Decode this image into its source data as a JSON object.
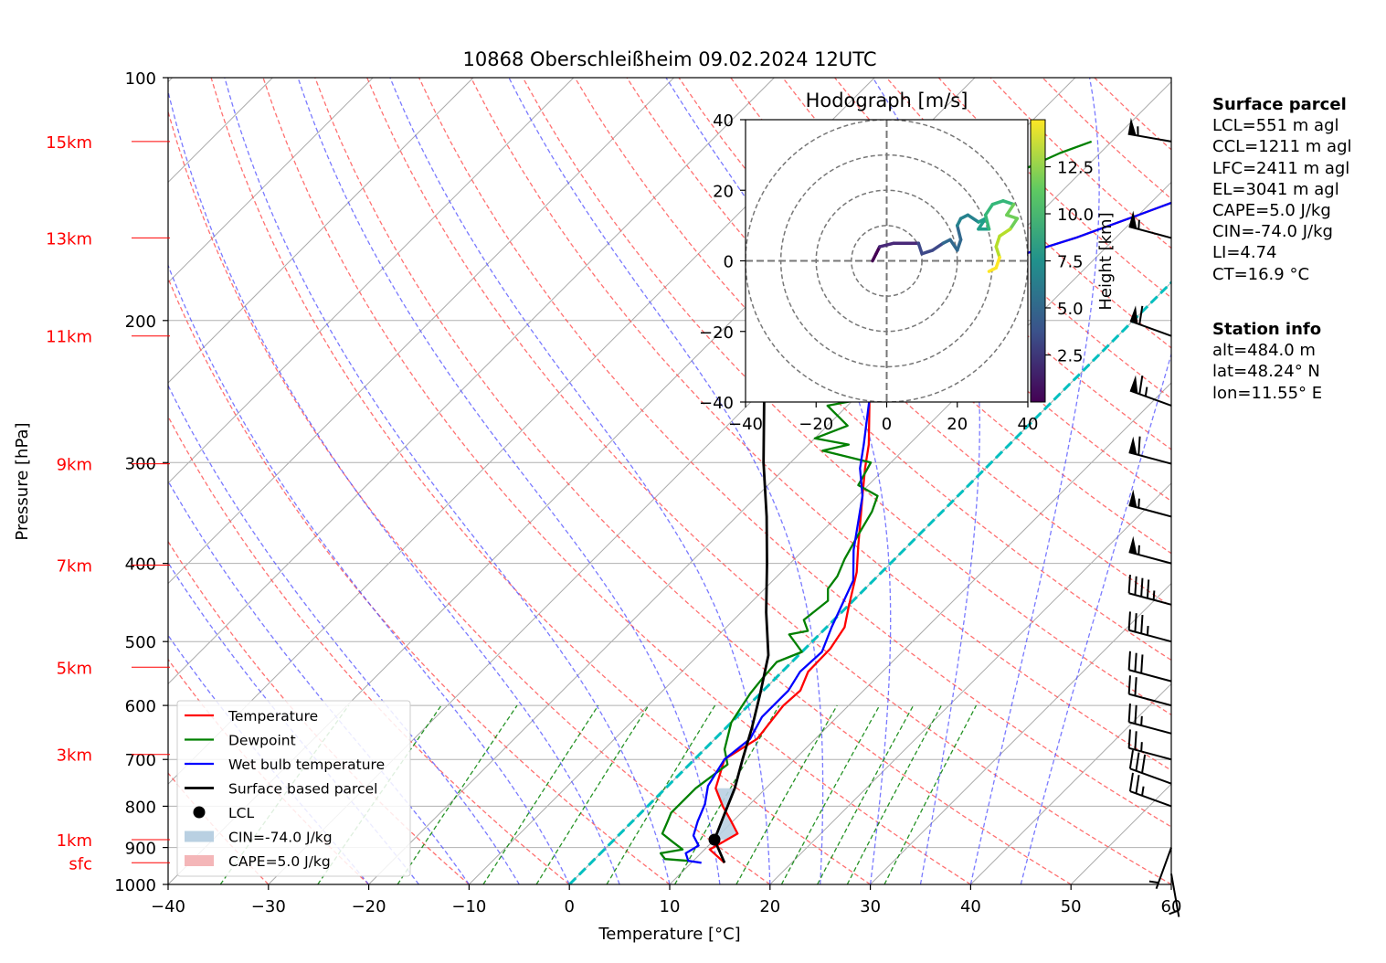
{
  "chart_data": {
    "type": "skew-t log-p",
    "title": "10868 Oberschleißheim 09.02.2024 12UTC",
    "xlabel": "Temperature [°C]",
    "ylabel": "Pressure [hPa]",
    "xlim": [
      -40,
      60
    ],
    "ylim": [
      1000,
      100
    ],
    "x_ticks": [
      "−40",
      "−30",
      "−20",
      "−10",
      "0",
      "10",
      "20",
      "30",
      "40",
      "50",
      "60"
    ],
    "y_ticks": [
      {
        "p": 100,
        "label": "100"
      },
      {
        "p": 200,
        "label": "200"
      },
      {
        "p": 300,
        "label": "300"
      },
      {
        "p": 400,
        "label": "400"
      },
      {
        "p": 500,
        "label": "500"
      },
      {
        "p": 600,
        "label": "600"
      },
      {
        "p": 700,
        "label": "700"
      },
      {
        "p": 800,
        "label": "800"
      },
      {
        "p": 900,
        "label": "900"
      },
      {
        "p": 1000,
        "label": "1000"
      }
    ],
    "height_labels": [
      {
        "p": 120,
        "label": "15km"
      },
      {
        "p": 158,
        "label": "13km"
      },
      {
        "p": 209,
        "label": "11km"
      },
      {
        "p": 301,
        "label": "9km"
      },
      {
        "p": 402,
        "label": "7km"
      },
      {
        "p": 538,
        "label": "5km"
      },
      {
        "p": 690,
        "label": "3km"
      },
      {
        "p": 880,
        "label": "1km"
      },
      {
        "p": 940,
        "label": "sfc"
      }
    ],
    "series": [
      {
        "name": "Temperature",
        "color": "#ff0000",
        "width": 2.3,
        "points": [
          [
            13.3,
            940
          ],
          [
            10.5,
            905
          ],
          [
            11.7,
            865
          ],
          [
            9.5,
            830
          ],
          [
            7.5,
            800
          ],
          [
            5,
            760
          ],
          [
            3,
            700
          ],
          [
            4.2,
            660
          ],
          [
            3.5,
            600
          ],
          [
            3.7,
            575
          ],
          [
            2.6,
            545
          ],
          [
            2.5,
            510
          ],
          [
            1.8,
            480
          ],
          [
            0.3,
            455
          ],
          [
            -2.5,
            410
          ],
          [
            -5,
            380
          ],
          [
            -9.5,
            330
          ],
          [
            -12,
            305
          ],
          [
            -14,
            285
          ],
          [
            -18.5,
            250
          ],
          [
            -21.5,
            225
          ],
          [
            -23.5,
            205
          ],
          [
            -25,
            188
          ],
          [
            -24.5,
            178
          ],
          [
            -20.5,
            172
          ],
          [
            -14,
            158
          ],
          [
            -10,
            148
          ],
          [
            -5,
            136
          ],
          [
            -3.5,
            129
          ],
          [
            0.5,
            120
          ],
          [
            0.5,
            118
          ]
        ]
      },
      {
        "name": "Dewpoint",
        "color": "#008000",
        "width": 2.3,
        "points": [
          [
            9.5,
            935
          ],
          [
            7,
            930
          ],
          [
            6,
            915
          ],
          [
            7.8,
            905
          ],
          [
            6,
            885
          ],
          [
            4.2,
            865
          ],
          [
            3.5,
            835
          ],
          [
            3,
            815
          ],
          [
            3,
            760
          ],
          [
            3.8,
            710
          ],
          [
            2,
            680
          ],
          [
            0,
            630
          ],
          [
            -1,
            580
          ],
          [
            -1.3,
            555
          ],
          [
            -1.5,
            530
          ],
          [
            0,
            515
          ],
          [
            -3,
            490
          ],
          [
            -1.5,
            485
          ],
          [
            -3,
            470
          ],
          [
            -2.5,
            445
          ],
          [
            -3.7,
            430
          ],
          [
            -4,
            415
          ],
          [
            -5,
            395
          ],
          [
            -6,
            370
          ],
          [
            -7,
            345
          ],
          [
            -8,
            330
          ],
          [
            -11,
            320
          ],
          [
            -11.5,
            310
          ],
          [
            -12,
            300
          ],
          [
            -18,
            290
          ],
          [
            -16,
            285
          ],
          [
            -20,
            280
          ],
          [
            -18,
            270
          ],
          [
            -22,
            255
          ],
          [
            -19,
            250
          ],
          [
            -20,
            235
          ],
          [
            -23,
            220
          ],
          [
            -22,
            200
          ],
          [
            -23.8,
            190
          ],
          [
            -23,
            180
          ],
          [
            -22,
            175
          ],
          [
            -28,
            160
          ],
          [
            -30,
            152
          ],
          [
            -30,
            145
          ],
          [
            -28,
            138
          ],
          [
            -26,
            130
          ],
          [
            -24,
            124
          ],
          [
            -22,
            120
          ]
        ]
      },
      {
        "name": "Wet bulb temperature",
        "color": "#0000ff",
        "width": 2.3,
        "points": [
          [
            11,
            940
          ],
          [
            9.5,
            935
          ],
          [
            8.5,
            915
          ],
          [
            9,
            895
          ],
          [
            7.5,
            870
          ],
          [
            6.5,
            835
          ],
          [
            5.5,
            795
          ],
          [
            4,
            755
          ],
          [
            3,
            700
          ],
          [
            3.5,
            660
          ],
          [
            2.5,
            620
          ],
          [
            2.5,
            575
          ],
          [
            1.8,
            545
          ],
          [
            2,
            515
          ],
          [
            0.5,
            480
          ],
          [
            -0.5,
            455
          ],
          [
            -2,
            420
          ],
          [
            -5,
            385
          ],
          [
            -9.5,
            330
          ],
          [
            -12.5,
            305
          ],
          [
            -14.5,
            285
          ],
          [
            -18.5,
            250
          ],
          [
            -22,
            225
          ],
          [
            -24,
            205
          ],
          [
            -25.5,
            188
          ],
          [
            -24.5,
            178
          ],
          [
            -20.5,
            172
          ],
          [
            -14,
            158
          ],
          [
            -10,
            148
          ],
          [
            -5,
            136
          ],
          [
            -3.5,
            129
          ],
          [
            0.5,
            120
          ],
          [
            0.5,
            118
          ]
        ]
      },
      {
        "name": "Surface based parcel",
        "color": "#000000",
        "width": 2.8,
        "points": [
          [
            13.3,
            940
          ],
          [
            10,
            880
          ],
          [
            8.5,
            820
          ],
          [
            6.9,
            760
          ],
          [
            4.8,
            700
          ],
          [
            2.6,
            640
          ],
          [
            0,
            580
          ],
          [
            -3,
            520
          ],
          [
            -7.5,
            460
          ],
          [
            -12.3,
            400
          ],
          [
            -17,
            350
          ],
          [
            -22.7,
            300
          ],
          [
            -29,
            250
          ],
          [
            -36.3,
            200
          ],
          [
            -46.4,
            150
          ],
          [
            -51,
            130
          ],
          [
            -55,
            115
          ]
        ]
      }
    ],
    "lcl": {
      "label": "LCL",
      "t": 10,
      "p": 880
    },
    "legend": {
      "position": "lower-left",
      "items": [
        "Temperature",
        "Dewpoint",
        "Wet bulb temperature",
        "Surface based parcel",
        "LCL",
        "CIN=-74.0 J/kg",
        "CAPE=5.0 J/kg"
      ],
      "cin_color": "#b9d0e2",
      "cape_color": "#f4b6b8"
    },
    "cin_shading": {
      "color": "#b9d0e2",
      "pmin": 760,
      "pmax": 880
    },
    "freezing_level_color": "#00bfbf",
    "grid": true,
    "dry_adiabat_color": "#ff4d4d",
    "moist_adiabat_color": "#4d4dff",
    "mixing_ratio_color": "#008000",
    "isotherm_color": "#aaaaaa",
    "wind_barbs": [
      {
        "p": 120,
        "speed": 55,
        "dir": 280
      },
      {
        "p": 158,
        "speed": 55,
        "dir": 285
      },
      {
        "p": 209,
        "speed": 60,
        "dir": 290
      },
      {
        "p": 255,
        "speed": 65,
        "dir": 290
      },
      {
        "p": 301,
        "speed": 60,
        "dir": 285
      },
      {
        "p": 350,
        "speed": 55,
        "dir": 285
      },
      {
        "p": 400,
        "speed": 55,
        "dir": 285
      },
      {
        "p": 450,
        "speed": 45,
        "dir": 285
      },
      {
        "p": 500,
        "speed": 35,
        "dir": 285
      },
      {
        "p": 560,
        "speed": 30,
        "dir": 285
      },
      {
        "p": 600,
        "speed": 20,
        "dir": 285
      },
      {
        "p": 650,
        "speed": 25,
        "dir": 285
      },
      {
        "p": 700,
        "speed": 25,
        "dir": 285
      },
      {
        "p": 750,
        "speed": 30,
        "dir": 290
      },
      {
        "p": 800,
        "speed": 25,
        "dir": 290
      },
      {
        "p": 900,
        "speed": 5,
        "dir": 200
      },
      {
        "p": 970,
        "speed": 5,
        "dir": 170
      }
    ],
    "hodograph": {
      "title": "Hodograph [m/s]",
      "xlim": [
        -40,
        40
      ],
      "ylim": [
        -40,
        40
      ],
      "x_ticks": [
        "−40",
        "−20",
        "0",
        "20",
        "40"
      ],
      "y_ticks": [
        "40",
        "20",
        "0",
        "−20",
        "−40"
      ],
      "rings": [
        10,
        20,
        30,
        40
      ],
      "colorbar_label": "Height [km]",
      "colorbar_ticks": [
        "2.5",
        "5.0",
        "7.5",
        "10.0",
        "12.5"
      ],
      "colorbar_range": [
        0,
        15
      ],
      "path": [
        {
          "u": -4,
          "v": 0,
          "h": 0.3
        },
        {
          "u": -3,
          "v": 2,
          "h": 0.6
        },
        {
          "u": -2,
          "v": 4,
          "h": 1
        },
        {
          "u": 2,
          "v": 5,
          "h": 1.5
        },
        {
          "u": 6,
          "v": 5,
          "h": 2
        },
        {
          "u": 9,
          "v": 5,
          "h": 2.5
        },
        {
          "u": 10,
          "v": 2,
          "h": 3
        },
        {
          "u": 13,
          "v": 3,
          "h": 3.5
        },
        {
          "u": 16,
          "v": 5,
          "h": 4
        },
        {
          "u": 18,
          "v": 6,
          "h": 4.5
        },
        {
          "u": 20,
          "v": 3,
          "h": 5
        },
        {
          "u": 21,
          "v": 6,
          "h": 5.5
        },
        {
          "u": 20,
          "v": 10,
          "h": 6
        },
        {
          "u": 21,
          "v": 12,
          "h": 6.5
        },
        {
          "u": 23,
          "v": 13,
          "h": 7
        },
        {
          "u": 26,
          "v": 11,
          "h": 7.5
        },
        {
          "u": 28,
          "v": 12,
          "h": 8
        },
        {
          "u": 26,
          "v": 9,
          "h": 8.5
        },
        {
          "u": 29,
          "v": 9,
          "h": 9
        },
        {
          "u": 28,
          "v": 13,
          "h": 9.5
        },
        {
          "u": 30,
          "v": 16,
          "h": 10
        },
        {
          "u": 33,
          "v": 17,
          "h": 10.5
        },
        {
          "u": 36,
          "v": 16,
          "h": 11
        },
        {
          "u": 34,
          "v": 13,
          "h": 11.5
        },
        {
          "u": 37,
          "v": 12,
          "h": 12
        },
        {
          "u": 35,
          "v": 9,
          "h": 12.5
        },
        {
          "u": 32,
          "v": 7,
          "h": 13
        },
        {
          "u": 31,
          "v": 4,
          "h": 13.5
        },
        {
          "u": 32,
          "v": 1,
          "h": 14
        },
        {
          "u": 31,
          "v": -2,
          "h": 14.5
        },
        {
          "u": 29,
          "v": -3,
          "h": 14.8
        }
      ]
    }
  },
  "surface_parcel": {
    "header": "Surface parcel",
    "lines": [
      "LCL=551 m agl",
      "CCL=1211 m agl",
      "LFC=2411 m agl",
      "EL=3041 m agl",
      "CAPE=5.0 J/kg",
      "CIN=-74.0 J/kg",
      "LI=4.74",
      "CT=16.9 °C"
    ]
  },
  "station_info": {
    "header": "Station info",
    "lines": [
      "alt=484.0 m",
      "lat=48.24° N",
      "lon=11.55° E"
    ]
  }
}
